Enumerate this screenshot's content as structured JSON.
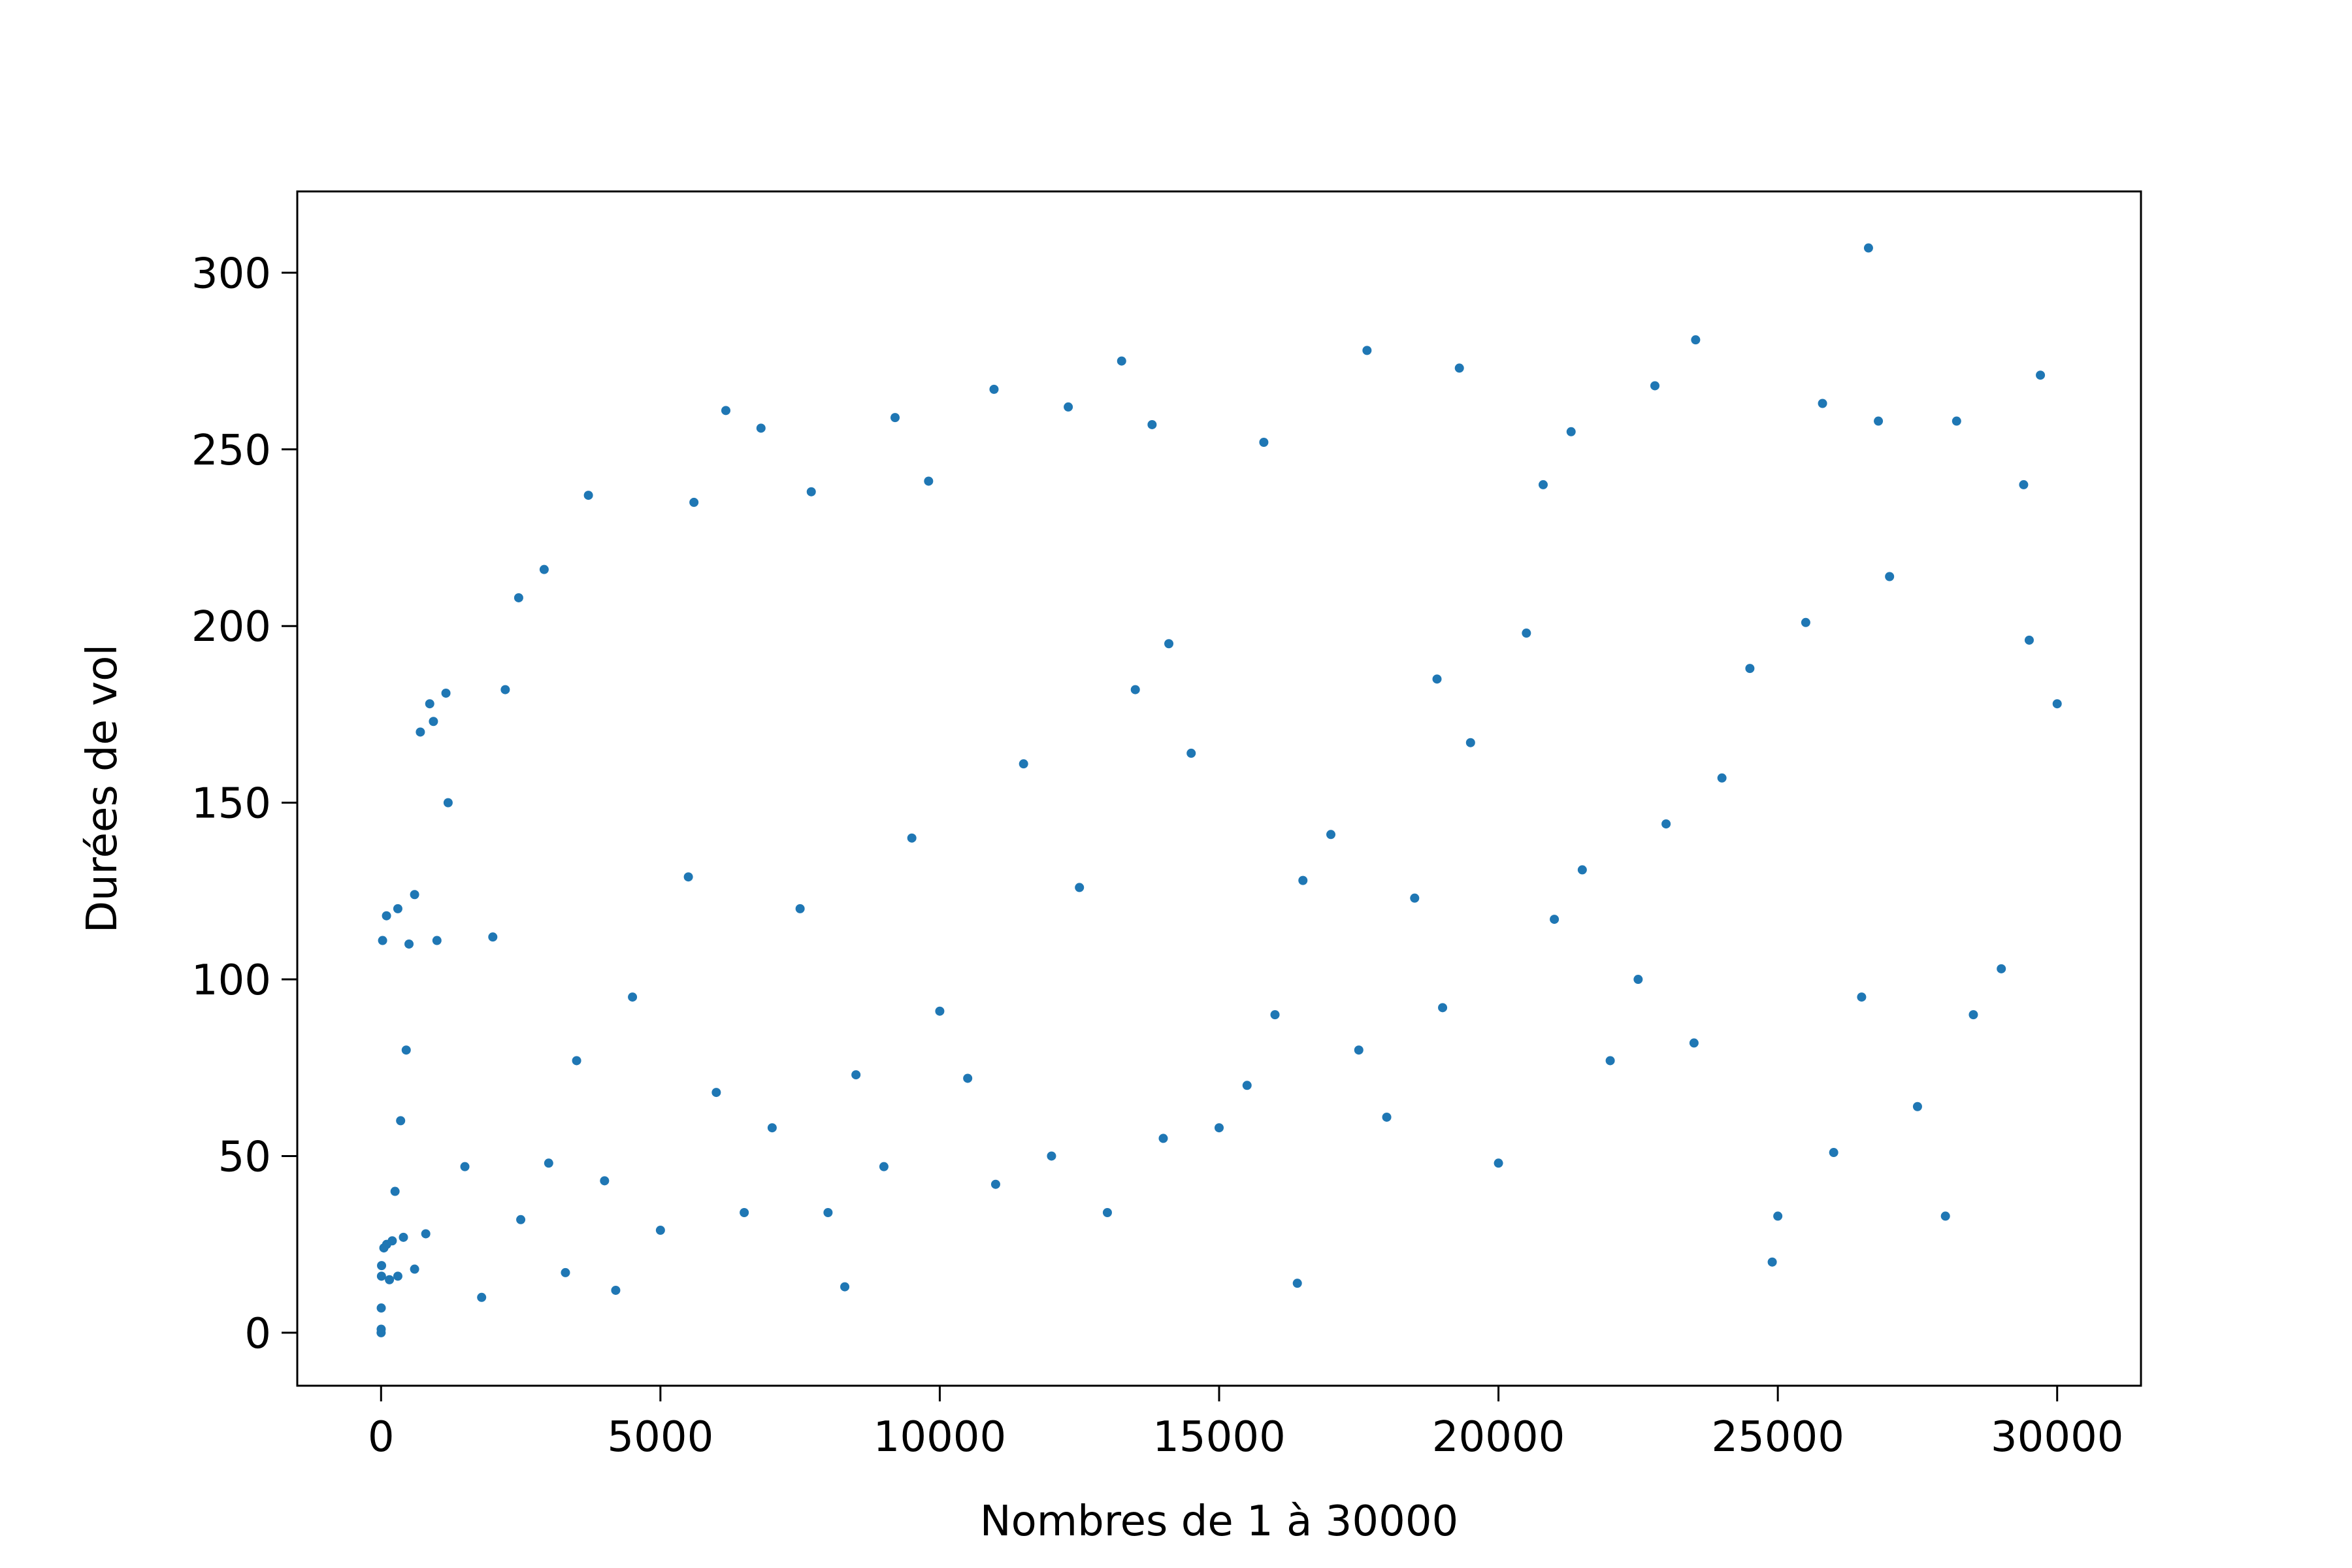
{
  "chart_data": {
    "type": "scatter",
    "xlabel": "Nombres de 1 à 30000",
    "ylabel": "Durées de vol",
    "color": "#1f77b4",
    "xlim": [
      -1500,
      31500
    ],
    "ylim": [
      -15,
      323
    ],
    "xticks": [
      0,
      5000,
      10000,
      15000,
      20000,
      25000,
      30000
    ],
    "yticks": [
      0,
      50,
      100,
      150,
      200,
      250,
      300
    ],
    "x": [
      1,
      2,
      3,
      7,
      9,
      27,
      97,
      871,
      703,
      937,
      1161,
      2223,
      2463,
      2919,
      3711,
      6171,
      10971,
      13255,
      17647,
      23529,
      26623,
      100,
      200,
      300,
      400,
      500,
      600,
      800,
      1000,
      1500,
      2000,
      2500,
      3000,
      3500,
      4000,
      4500,
      5000,
      5500,
      6000,
      6500,
      7000,
      7500,
      8000,
      8500,
      9000,
      9500,
      10000,
      10500,
      11000,
      11500,
      12000,
      12500,
      13000,
      13500,
      14000,
      14500,
      15000,
      15500,
      16000,
      16500,
      17000,
      17500,
      18000,
      18500,
      19000,
      19500,
      20000,
      20500,
      21000,
      21500,
      22000,
      22500,
      23000,
      23500,
      24000,
      24500,
      25000,
      25500,
      26000,
      26500,
      27000,
      27500,
      28000,
      28500,
      29000,
      29500,
      30000,
      4200,
      8300,
      12300,
      16400,
      19300,
      21300,
      25800,
      29400,
      24900,
      18900,
      14100,
      9200,
      5600,
      3300,
      1800,
      1200,
      600,
      300,
      50,
      150,
      250,
      350,
      450,
      6800,
      9800,
      13800,
      15800,
      20800,
      22800,
      26800,
      28200,
      29700,
      7700
    ],
    "values": [
      0,
      1,
      7,
      16,
      19,
      111,
      118,
      178,
      170,
      173,
      181,
      182,
      208,
      216,
      237,
      261,
      267,
      275,
      278,
      281,
      307,
      25,
      26,
      16,
      27,
      110,
      18,
      28,
      111,
      47,
      112,
      32,
      48,
      77,
      43,
      95,
      29,
      129,
      68,
      34,
      58,
      120,
      34,
      73,
      47,
      140,
      91,
      72,
      42,
      161,
      50,
      126,
      34,
      182,
      55,
      164,
      58,
      70,
      90,
      128,
      141,
      80,
      61,
      123,
      92,
      167,
      48,
      198,
      117,
      131,
      77,
      100,
      144,
      82,
      157,
      188,
      33,
      201,
      51,
      95,
      214,
      64,
      33,
      90,
      103,
      196,
      178,
      12,
      13,
      262,
      14,
      273,
      255,
      263,
      240,
      20,
      185,
      195,
      259,
      235,
      17,
      10,
      150,
      124,
      120,
      24,
      15,
      40,
      60,
      80,
      256,
      241,
      257,
      252,
      240,
      268,
      258,
      258,
      271,
      238
    ]
  }
}
